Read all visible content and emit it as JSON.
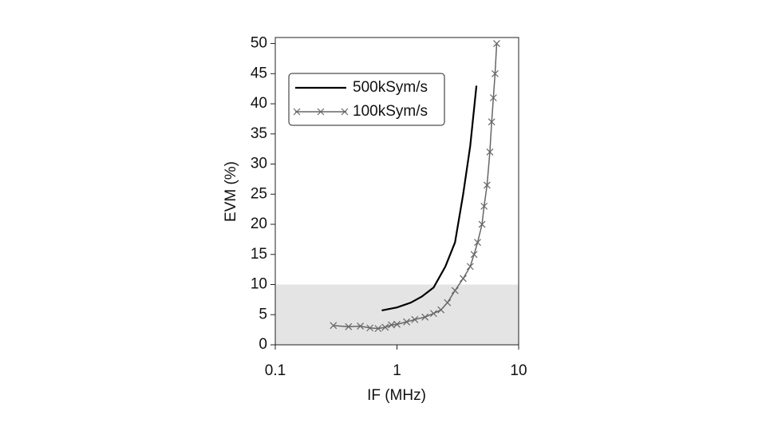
{
  "chart_data": {
    "type": "line",
    "xlabel": "IF (MHz)",
    "ylabel": "EVM (%)",
    "xscale": "log",
    "xlim": [
      0.1,
      10
    ],
    "xticks": [
      0.1,
      1,
      10
    ],
    "ylim": [
      0,
      51
    ],
    "yticks": [
      0,
      5,
      10,
      15,
      20,
      25,
      30,
      35,
      40,
      45,
      50
    ],
    "shaded_range": [
      0,
      10
    ],
    "legend": "upper left",
    "series": [
      {
        "name": "500kSym/s",
        "color": "#000000",
        "x": [
          0.75,
          1.0,
          1.3,
          1.6,
          2.0,
          2.5,
          3.0,
          3.5,
          4.0,
          4.5
        ],
        "values": [
          5.7,
          6.2,
          7,
          8,
          9.5,
          13,
          17,
          25,
          33,
          43
        ]
      },
      {
        "name": "100kSym/s",
        "color": "#666666",
        "marker": "x",
        "x": [
          0.3,
          0.4,
          0.5,
          0.6,
          0.7,
          0.8,
          0.9,
          1.0,
          1.2,
          1.4,
          1.7,
          2.0,
          2.3,
          2.6,
          3.0,
          3.5,
          4.0,
          4.3,
          4.6,
          5.0,
          5.2,
          5.5,
          5.8,
          6.0,
          6.2,
          6.4,
          6.6
        ],
        "values": [
          3.2,
          3.0,
          3.1,
          2.8,
          2.7,
          2.9,
          3.3,
          3.4,
          3.8,
          4.2,
          4.6,
          5.2,
          5.8,
          7,
          9,
          11,
          13,
          15,
          17,
          20,
          23,
          26.5,
          32,
          37,
          41,
          45,
          50
        ]
      }
    ]
  }
}
